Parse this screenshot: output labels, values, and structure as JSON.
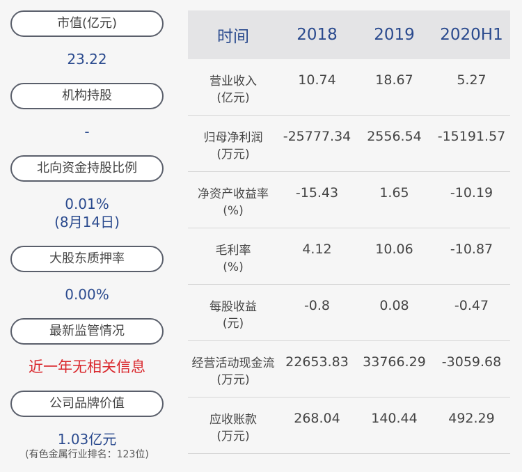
{
  "left_panel": {
    "market_cap": {
      "label": "市值(亿元)",
      "value": "23.22"
    },
    "institutional": {
      "label": "机构持股",
      "value": "-"
    },
    "northbound": {
      "label": "北向资金持股比例",
      "value": "0.01%",
      "date": "(8月14日)"
    },
    "pledge": {
      "label": "大股东质押率",
      "value": "0.00%"
    },
    "regulation": {
      "label": "最新监管情况",
      "value": "近一年无相关信息"
    },
    "brand": {
      "label": "公司品牌价值",
      "value": "1.03亿元",
      "note": "(有色金属行业排名：123位)"
    }
  },
  "table": {
    "headers": [
      "时间",
      "2018",
      "2019",
      "2020H1"
    ],
    "rows": [
      {
        "label1": "营业收入",
        "label2": "(亿元)",
        "values": [
          "10.74",
          "18.67",
          "5.27"
        ]
      },
      {
        "label1": "归母净利润",
        "label2": "(万元)",
        "values": [
          "-25777.34",
          "2556.54",
          "-15191.57"
        ]
      },
      {
        "label1": "净资产收益率",
        "label2": "(%)",
        "values": [
          "-15.43",
          "1.65",
          "-10.19"
        ]
      },
      {
        "label1": "毛利率",
        "label2": "(%)",
        "values": [
          "4.12",
          "10.06",
          "-10.87"
        ]
      },
      {
        "label1": "每股收益",
        "label2": "(元)",
        "values": [
          "-0.8",
          "0.08",
          "-0.47"
        ]
      },
      {
        "label1": "经营活动现金流",
        "label2": "(万元)",
        "values": [
          "22653.83",
          "33766.29",
          "-3059.68"
        ]
      },
      {
        "label1": "应收账款",
        "label2": "(万元)",
        "values": [
          "268.04",
          "140.44",
          "492.29"
        ]
      }
    ]
  },
  "colors": {
    "value_blue": "#2a4a8e",
    "alert_red": "#d9262b",
    "pill_border": "#5a5f6b",
    "header_bg": "#e4e4e6"
  }
}
